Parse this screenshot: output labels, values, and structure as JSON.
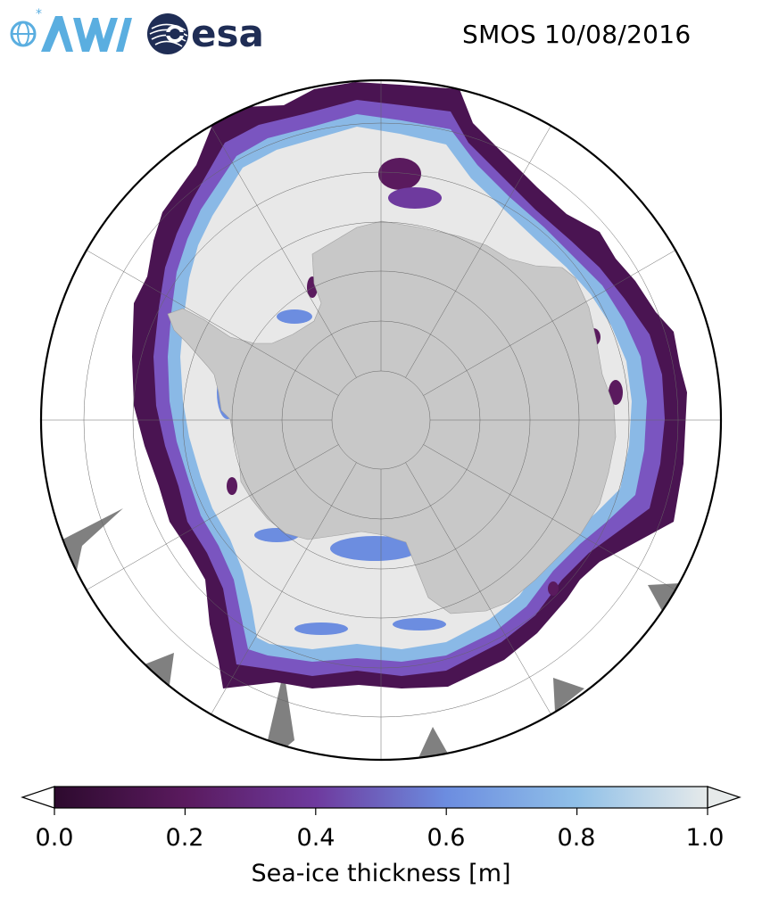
{
  "logos": {
    "awi": {
      "text": "AWI",
      "color": "#5aaee0"
    },
    "esa": {
      "text": "esa",
      "color": "#1f2d55"
    }
  },
  "map": {
    "title": "SMOS 10/08/2016",
    "projection": "south polar stereographic",
    "land_color": "#c8c8c8",
    "thick_ice_color": "#e8e8e8",
    "no_data_color": "#808080",
    "ocean_color": "#ffffff",
    "graticule": true
  },
  "colorbar": {
    "label": "Sea-ice thickness [m]",
    "min": 0.0,
    "max": 1.0,
    "ticks": [
      "0.0",
      "0.2",
      "0.4",
      "0.6",
      "0.8",
      "1.0"
    ],
    "extend": "both",
    "colors": [
      "#2d0a2e",
      "#5a1a5e",
      "#6e3a9e",
      "#6c8de0",
      "#90c0e8",
      "#e6eaea"
    ]
  }
}
